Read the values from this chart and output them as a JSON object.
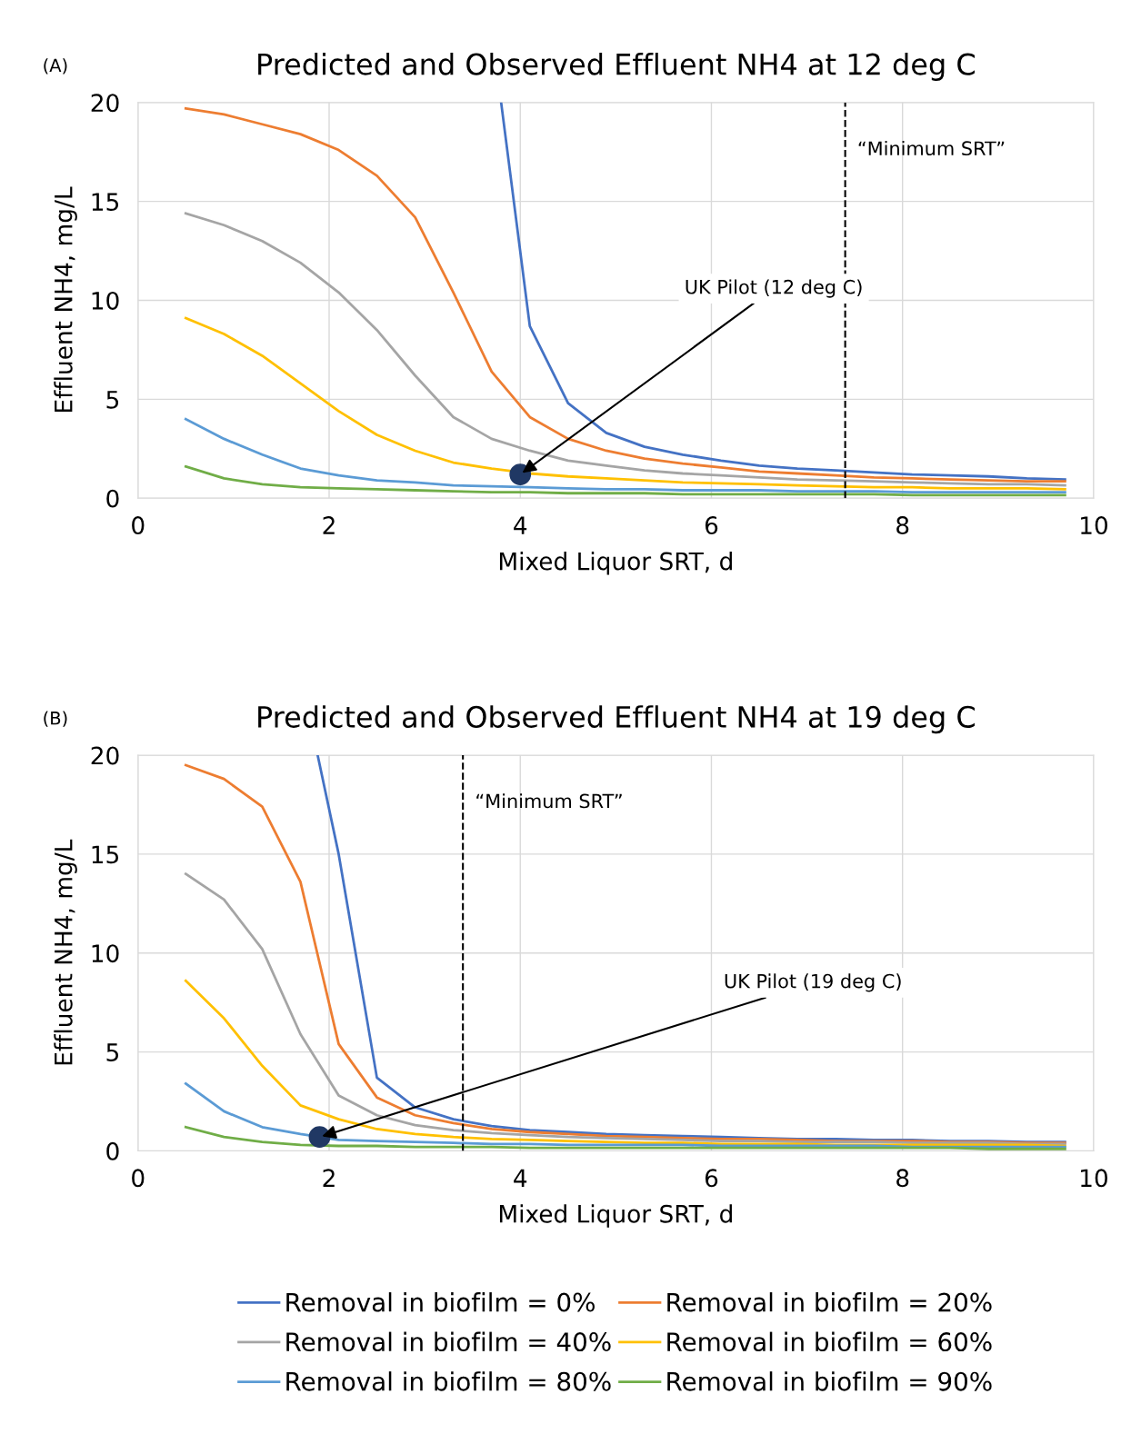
{
  "chart_data": [
    {
      "type": "line",
      "title": "Predicted and Observed Effluent NH4 at 12 deg C",
      "xlabel": "Mixed Liquor SRT, d",
      "ylabel": "Effluent NH4, mg/L",
      "x": [
        0.5,
        0.9,
        1.3,
        1.7,
        2.1,
        2.5,
        2.9,
        3.3,
        3.7,
        4.1,
        4.5,
        4.9,
        5.3,
        5.7,
        6.1,
        6.5,
        6.9,
        7.3,
        7.7,
        8.1,
        8.5,
        8.9,
        9.3,
        9.7
      ],
      "xlim": [
        0,
        10
      ],
      "xticks": [
        0,
        2,
        4,
        6,
        8,
        10
      ],
      "ylim": [
        0,
        20
      ],
      "yticks": [
        0,
        5,
        10,
        15,
        20
      ],
      "grid": true,
      "legend": false,
      "marker": "none",
      "line_style": "solid",
      "series": [
        {
          "color": "#4472c4",
          "x": [
            3.8,
            4.1,
            4.5,
            4.9,
            5.3,
            5.7,
            6.1,
            6.5,
            6.9,
            7.3,
            7.7,
            8.1,
            8.5,
            8.9,
            9.3,
            9.7
          ],
          "values": [
            20,
            8.7,
            4.8,
            3.3,
            2.6,
            2.2,
            1.9,
            1.65,
            1.5,
            1.4,
            1.3,
            1.2,
            1.15,
            1.1,
            1.0,
            0.95
          ]
        },
        {
          "color": "#ed7d31",
          "values": [
            19.7,
            19.4,
            18.9,
            18.4,
            17.6,
            16.3,
            14.2,
            10.4,
            6.4,
            4.1,
            3.0,
            2.4,
            2.0,
            1.75,
            1.55,
            1.35,
            1.25,
            1.15,
            1.05,
            1.0,
            0.95,
            0.9,
            0.85,
            0.85
          ]
        },
        {
          "color": "#a5a5a5",
          "values": [
            14.4,
            13.8,
            13.0,
            11.9,
            10.4,
            8.5,
            6.2,
            4.1,
            3.0,
            2.4,
            1.9,
            1.65,
            1.4,
            1.25,
            1.15,
            1.05,
            0.95,
            0.9,
            0.85,
            0.8,
            0.75,
            0.7,
            0.7,
            0.65
          ]
        },
        {
          "color": "#ffc000",
          "values": [
            9.1,
            8.3,
            7.2,
            5.8,
            4.4,
            3.2,
            2.4,
            1.8,
            1.5,
            1.25,
            1.1,
            1.0,
            0.9,
            0.8,
            0.75,
            0.7,
            0.65,
            0.6,
            0.55,
            0.55,
            0.5,
            0.5,
            0.5,
            0.45
          ]
        },
        {
          "color": "#5b9bd5",
          "values": [
            4.0,
            3.0,
            2.2,
            1.5,
            1.15,
            0.9,
            0.8,
            0.65,
            0.6,
            0.55,
            0.5,
            0.45,
            0.45,
            0.4,
            0.4,
            0.4,
            0.35,
            0.35,
            0.35,
            0.3,
            0.3,
            0.3,
            0.3,
            0.3
          ]
        },
        {
          "color": "#70ad47",
          "values": [
            1.6,
            1.0,
            0.7,
            0.55,
            0.5,
            0.45,
            0.4,
            0.35,
            0.3,
            0.3,
            0.25,
            0.25,
            0.25,
            0.2,
            0.2,
            0.2,
            0.2,
            0.2,
            0.2,
            0.15,
            0.15,
            0.15,
            0.15,
            0.15
          ]
        },
        {
          "type": "scatter",
          "marker": "circle",
          "color": "#203864",
          "x": [
            4.0
          ],
          "values": [
            1.2
          ]
        }
      ],
      "ref_lines": [
        {
          "axis": "x",
          "value": 7.4,
          "label": "“Minimum SRT”",
          "color": "#000000",
          "line_style": "dashed"
        }
      ],
      "annotations": [
        "(A)",
        {
          "text": "UK Pilot (12 deg C)",
          "x": 4.0,
          "y": 1.2
        }
      ]
    },
    {
      "type": "line",
      "title": "Predicted and Observed Effluent NH4 at 19 deg C",
      "xlabel": "Mixed Liquor SRT, d",
      "ylabel": "Effluent NH4, mg/L",
      "x": [
        0.5,
        0.9,
        1.3,
        1.7,
        2.1,
        2.5,
        2.9,
        3.3,
        3.7,
        4.1,
        4.5,
        4.9,
        5.3,
        5.7,
        6.1,
        6.5,
        6.9,
        7.3,
        7.7,
        8.1,
        8.5,
        8.9,
        9.3,
        9.7
      ],
      "xlim": [
        0,
        10
      ],
      "xticks": [
        0,
        2,
        4,
        6,
        8,
        10
      ],
      "ylim": [
        0,
        20
      ],
      "yticks": [
        0,
        5,
        10,
        15,
        20
      ],
      "grid": true,
      "legend": "bottom",
      "marker": "none",
      "line_style": "solid",
      "series": [
        {
          "name": "Removal in biofilm = 0%",
          "color": "#4472c4",
          "x": [
            1.88,
            2.1,
            2.5,
            2.9,
            3.3,
            3.7,
            4.1,
            4.5,
            4.9,
            5.3,
            5.7,
            6.1,
            6.5,
            6.9,
            7.3,
            7.7,
            8.1,
            8.5,
            8.9,
            9.3,
            9.7
          ],
          "values": [
            20,
            15.0,
            3.7,
            2.2,
            1.6,
            1.25,
            1.05,
            0.95,
            0.85,
            0.8,
            0.75,
            0.7,
            0.65,
            0.6,
            0.6,
            0.55,
            0.55,
            0.5,
            0.5,
            0.45,
            0.45
          ]
        },
        {
          "name": "Removal in biofilm = 20%",
          "color": "#ed7d31",
          "values": [
            19.5,
            18.8,
            17.4,
            13.6,
            5.4,
            2.7,
            1.8,
            1.4,
            1.1,
            0.95,
            0.85,
            0.75,
            0.7,
            0.65,
            0.6,
            0.6,
            0.55,
            0.5,
            0.5,
            0.5,
            0.45,
            0.45,
            0.4,
            0.4
          ]
        },
        {
          "name": "Removal in biofilm = 40%",
          "color": "#a5a5a5",
          "values": [
            14.0,
            12.7,
            10.2,
            5.9,
            2.8,
            1.8,
            1.3,
            1.05,
            0.9,
            0.8,
            0.7,
            0.65,
            0.6,
            0.55,
            0.5,
            0.5,
            0.45,
            0.45,
            0.45,
            0.4,
            0.4,
            0.4,
            0.35,
            0.35
          ]
        },
        {
          "name": "Removal in biofilm = 60%",
          "color": "#ffc000",
          "values": [
            8.6,
            6.7,
            4.3,
            2.3,
            1.6,
            1.1,
            0.85,
            0.7,
            0.6,
            0.55,
            0.5,
            0.45,
            0.4,
            0.4,
            0.35,
            0.35,
            0.35,
            0.3,
            0.3,
            0.3,
            0.3,
            0.3,
            0.3,
            0.25
          ]
        },
        {
          "name": "Removal in biofilm = 80%",
          "color": "#5b9bd5",
          "values": [
            3.4,
            2.0,
            1.2,
            0.85,
            0.55,
            0.5,
            0.45,
            0.4,
            0.35,
            0.35,
            0.3,
            0.3,
            0.3,
            0.3,
            0.25,
            0.25,
            0.25,
            0.25,
            0.25,
            0.2,
            0.2,
            0.2,
            0.2,
            0.2
          ]
        },
        {
          "name": "Removal in biofilm = 90%",
          "color": "#70ad47",
          "values": [
            1.2,
            0.7,
            0.45,
            0.3,
            0.25,
            0.25,
            0.2,
            0.2,
            0.2,
            0.15,
            0.15,
            0.15,
            0.15,
            0.15,
            0.15,
            0.15,
            0.15,
            0.15,
            0.15,
            0.15,
            0.15,
            0.1,
            0.1,
            0.1
          ]
        },
        {
          "type": "scatter",
          "marker": "circle",
          "color": "#203864",
          "x": [
            1.9
          ],
          "values": [
            0.7
          ]
        }
      ],
      "ref_lines": [
        {
          "axis": "x",
          "value": 3.4,
          "label": "“Minimum SRT”",
          "color": "#000000",
          "line_style": "dashed"
        }
      ],
      "annotations": [
        "(B)",
        {
          "text": "UK Pilot (19 deg C)",
          "x": 1.9,
          "y": 0.7
        }
      ]
    }
  ]
}
